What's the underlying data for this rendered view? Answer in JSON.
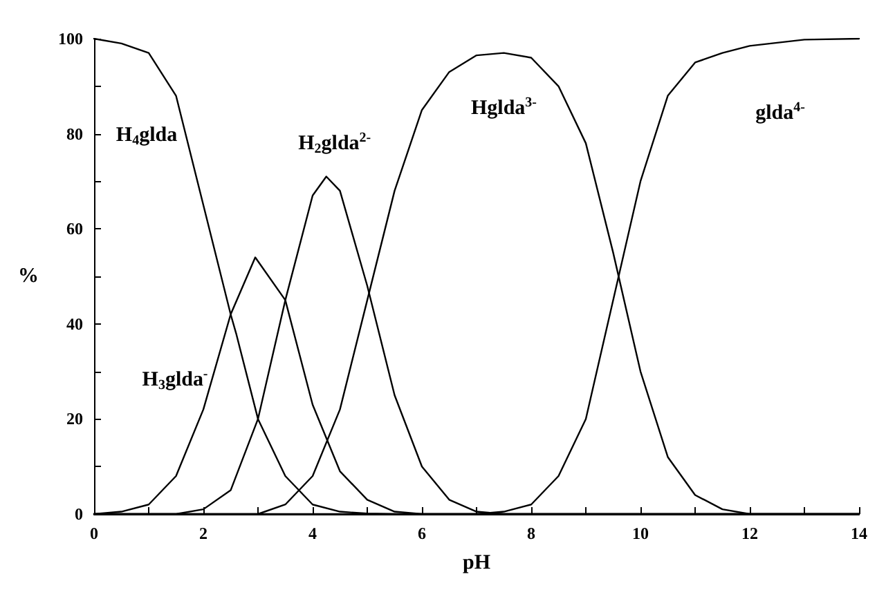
{
  "chart_data": {
    "type": "line",
    "xlabel": "pH",
    "ylabel": "%",
    "xlim": [
      0,
      14
    ],
    "ylim": [
      0,
      100
    ],
    "xticks": [
      0,
      {
        "value": 1,
        "label": null
      },
      2,
      {
        "value": 3,
        "label": null
      },
      4,
      {
        "value": 5,
        "label": null
      },
      6,
      {
        "value": 7,
        "label": null
      },
      8,
      {
        "value": 9,
        "label": null
      },
      10,
      {
        "value": 11,
        "label": null
      },
      12,
      {
        "value": 13,
        "label": null
      },
      14
    ],
    "yticks": [
      0,
      {
        "value": 10,
        "label": null
      },
      20,
      {
        "value": 30,
        "label": null
      },
      40,
      {
        "value": 50,
        "label": null
      },
      60,
      {
        "value": 70,
        "label": null
      },
      80,
      {
        "value": 90,
        "label": null
      },
      100
    ],
    "grid": false,
    "marker": "none",
    "line_style": "solid",
    "series": [
      {
        "name": "H$_{4}$glda",
        "color": "#000000",
        "x": [
          0,
          0.5,
          1,
          1.5,
          2,
          2.5,
          2.6,
          3,
          3.5,
          4,
          4.5,
          5,
          5.5,
          14
        ],
        "values": [
          100,
          99,
          97,
          88,
          65,
          42,
          38,
          20,
          8,
          2,
          0.5,
          0.1,
          0,
          0
        ]
      },
      {
        "name": "H$_{3}$glda$^{-}$",
        "color": "#000000",
        "x": [
          0,
          0.5,
          1,
          1.5,
          2,
          2.5,
          2.95,
          3.5,
          4,
          4.5,
          5,
          5.5,
          6,
          14
        ],
        "values": [
          0,
          0.5,
          2,
          8,
          22,
          42,
          54,
          45,
          23,
          9,
          3,
          0.5,
          0,
          0
        ]
      },
      {
        "name": "H$_{2}$glda$^{2-}$",
        "color": "#000000",
        "x": [
          0,
          1.5,
          2,
          2.5,
          3,
          3.5,
          4,
          4.25,
          4.5,
          5,
          5.5,
          6,
          6.5,
          7,
          7.5,
          14
        ],
        "values": [
          0,
          0,
          1,
          5,
          20,
          45,
          67,
          71,
          68,
          48,
          25,
          10,
          3,
          0.5,
          0,
          0
        ]
      },
      {
        "name": "Hglda$^{3-}$",
        "color": "#000000",
        "x": [
          0,
          3,
          3.5,
          4,
          4.5,
          5,
          5.5,
          6,
          6.5,
          7,
          7.5,
          8,
          8.5,
          9,
          9.5,
          10,
          10.5,
          11,
          11.5,
          12,
          14
        ],
        "values": [
          0,
          0,
          2,
          8,
          22,
          45,
          68,
          85,
          93,
          96.5,
          97,
          96,
          90,
          78,
          55,
          30,
          12,
          4,
          1,
          0,
          0
        ]
      },
      {
        "name": "glda$^{4-}$",
        "color": "#000000",
        "x": [
          0,
          7,
          7.5,
          8,
          8.5,
          9,
          9.5,
          10,
          10.5,
          11,
          11.5,
          12,
          13,
          14
        ],
        "values": [
          0,
          0,
          0.5,
          2,
          8,
          20,
          45,
          70,
          88,
          95,
          97,
          98.5,
          99.8,
          100
        ]
      }
    ]
  }
}
